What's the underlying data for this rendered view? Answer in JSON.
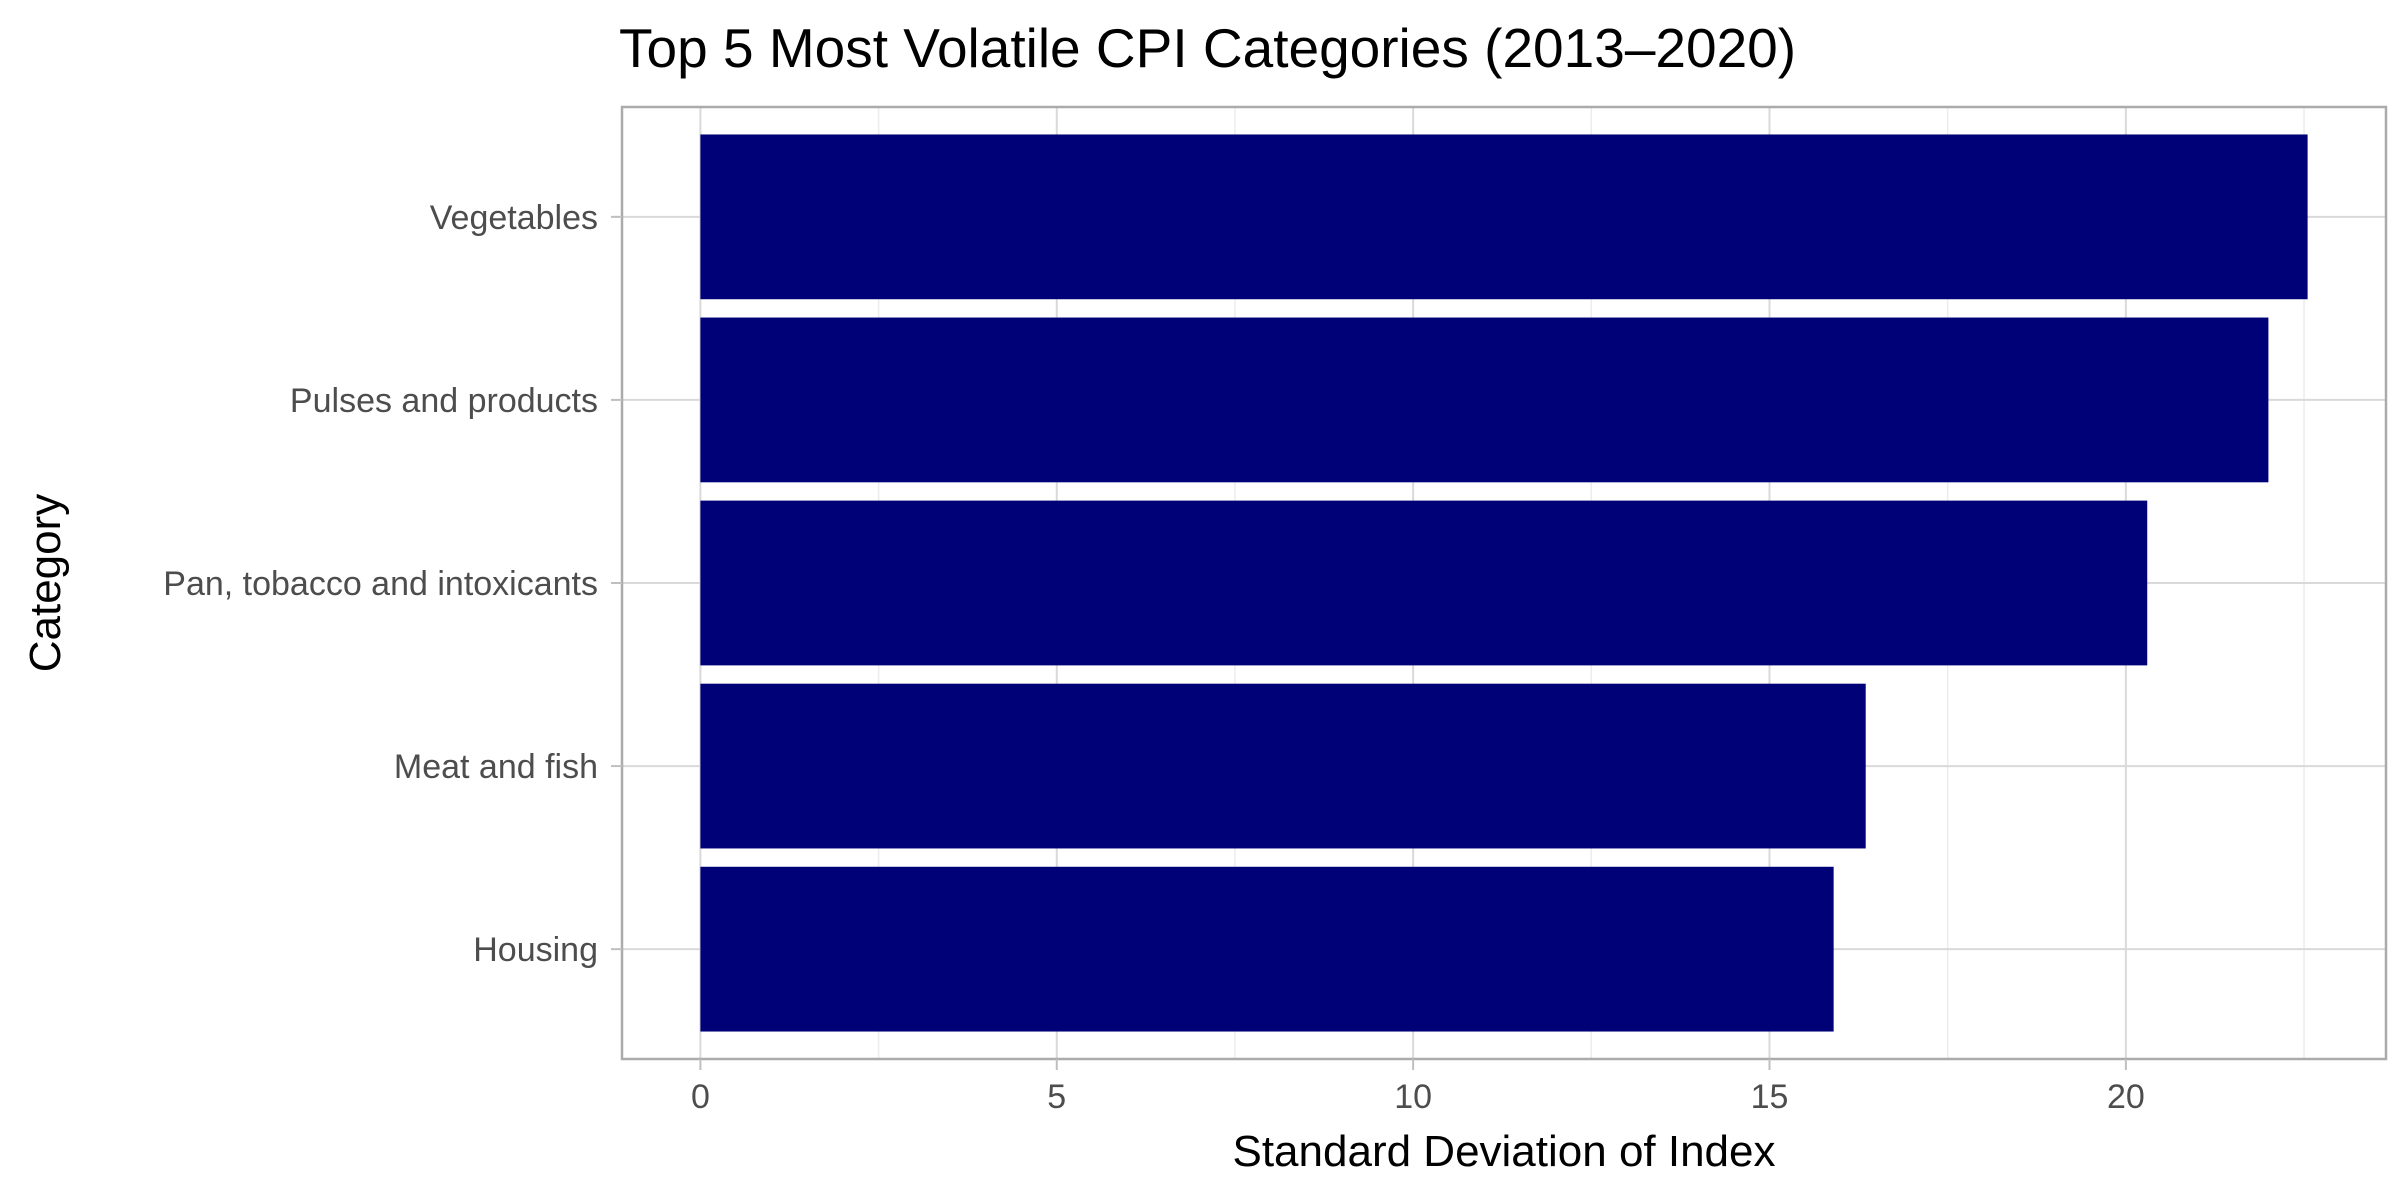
{
  "chart_data": {
    "type": "bar",
    "orientation": "horizontal",
    "title": "Top 5 Most Volatile CPI Categories (2013–2020)",
    "xlabel": "Standard Deviation of Index",
    "ylabel": "Category",
    "categories": [
      "Vegetables",
      "Pulses and products",
      "Pan, tobacco and intoxicants",
      "Meat and fish",
      "Housing"
    ],
    "values": [
      22.55,
      22.0,
      20.3,
      16.35,
      15.9
    ],
    "xlim": [
      -1.1,
      23.65
    ],
    "x_ticks": [
      0,
      5,
      10,
      15,
      20
    ],
    "x_tick_labels": [
      "0",
      "5",
      "10",
      "15",
      "20"
    ],
    "bar_color": "#000077",
    "grid": true,
    "legend": "none"
  }
}
